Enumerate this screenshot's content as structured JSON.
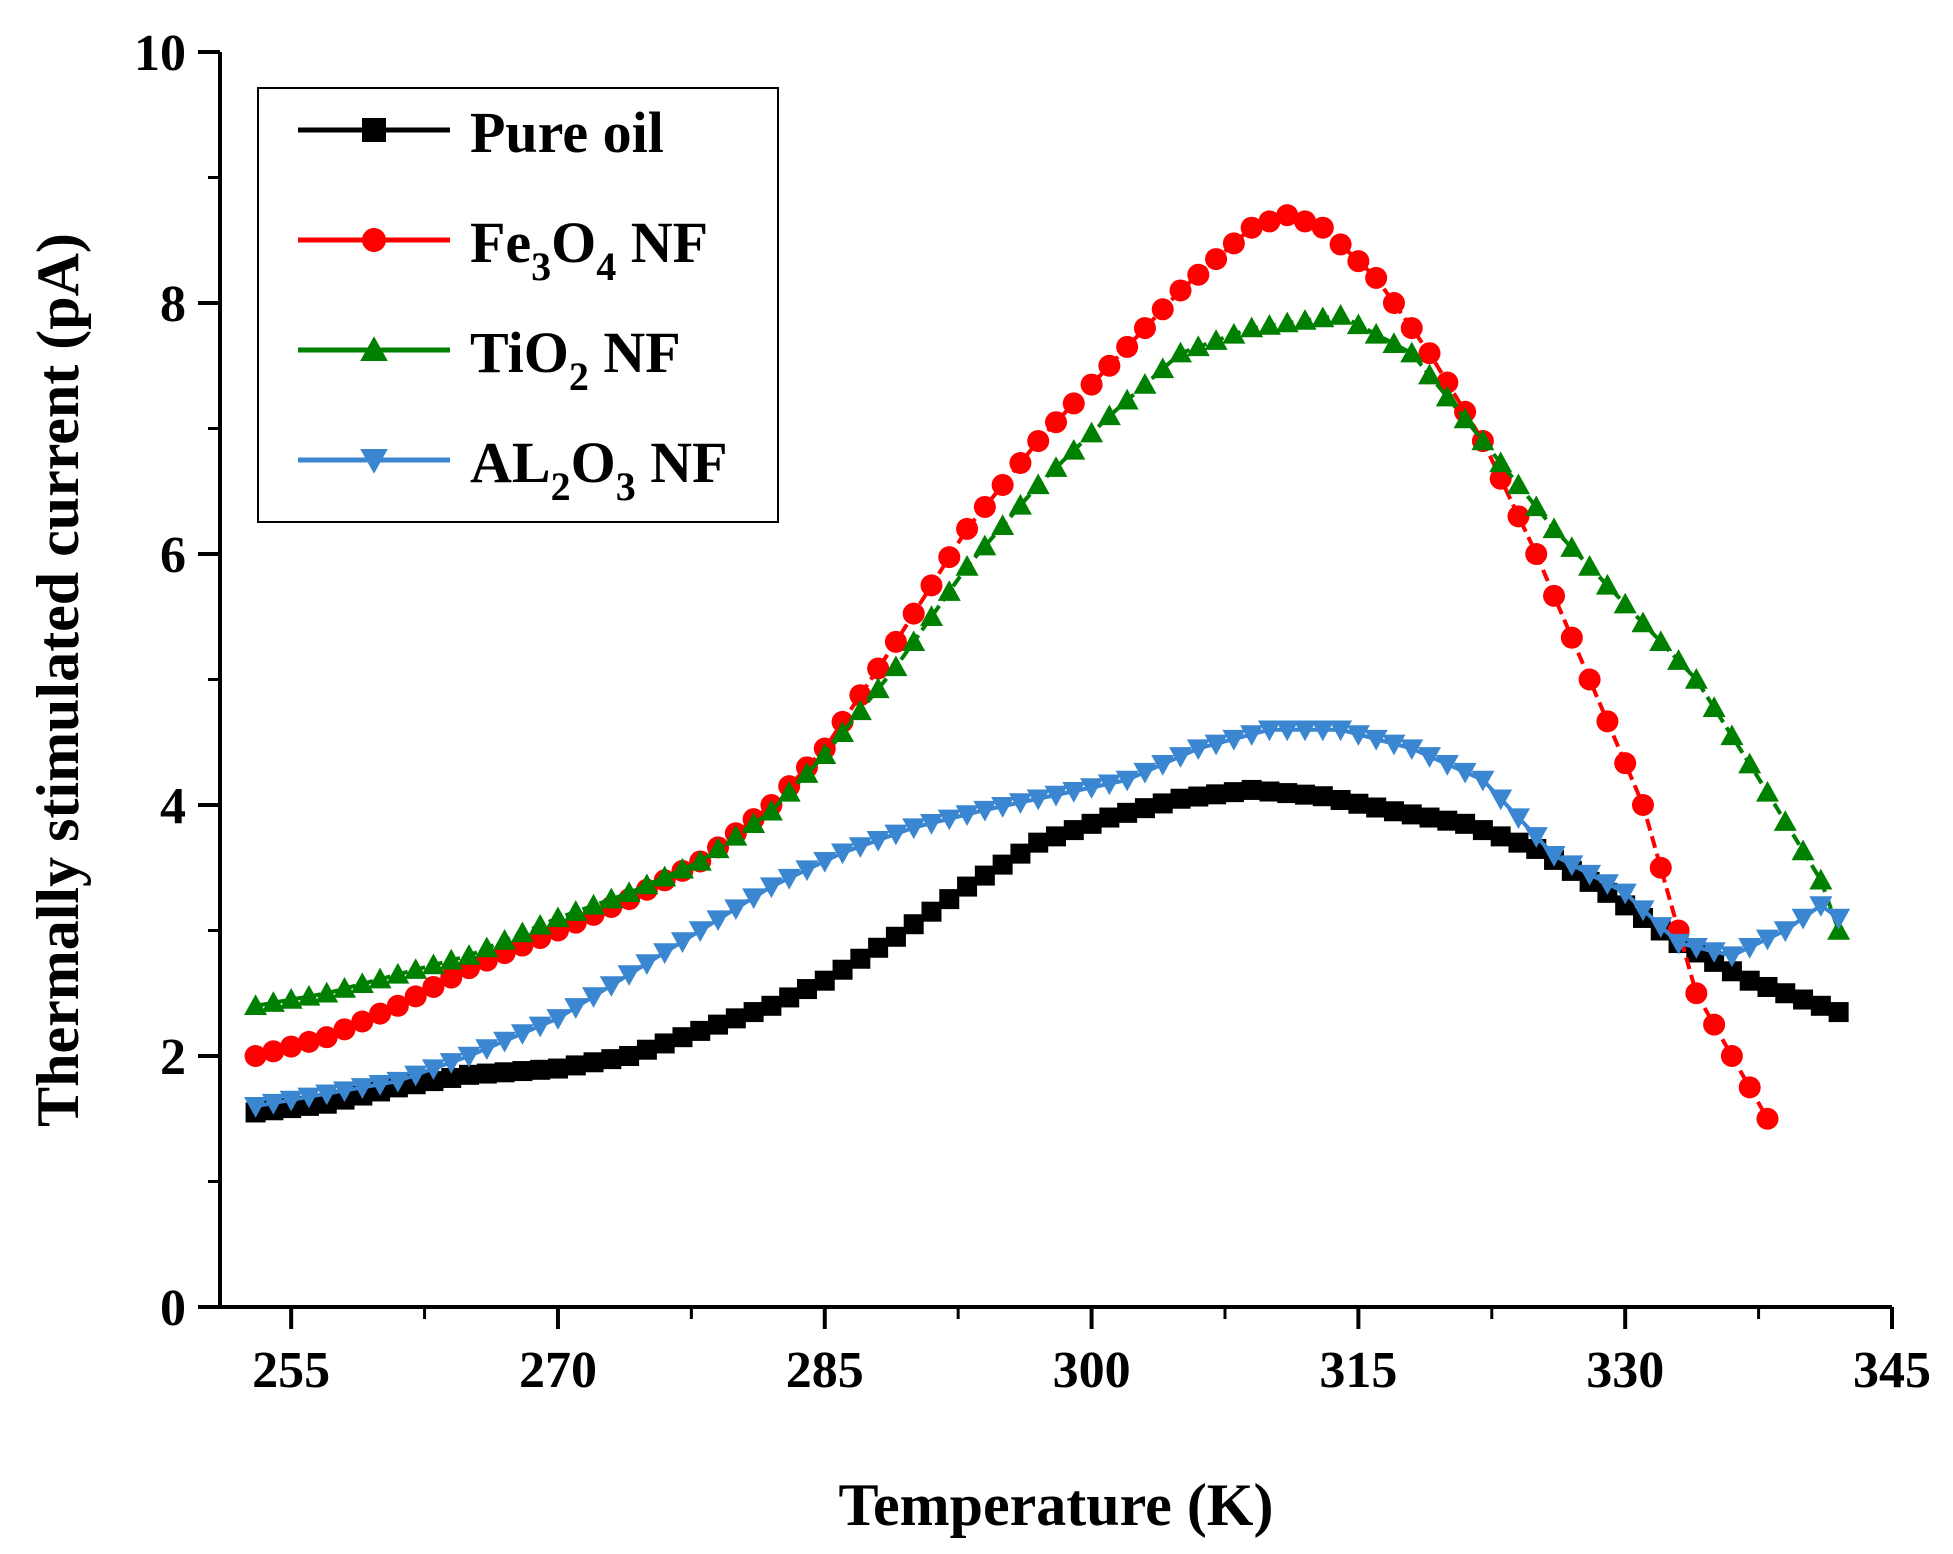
{
  "chart_data": {
    "type": "line",
    "xlabel": "Temperature (K)",
    "ylabel": "Thermally stimulated current (pA)",
    "xlim": [
      251,
      345
    ],
    "ylim": [
      0,
      10
    ],
    "x_ticks": [
      255,
      270,
      285,
      300,
      315,
      330,
      345
    ],
    "y_ticks": [
      0,
      2,
      4,
      6,
      8,
      10
    ],
    "legend": {
      "position": "top-left",
      "entries": [
        {
          "text": "Pure oil",
          "parts": [
            {
              "t": "Pure oil",
              "sub": false
            }
          ]
        },
        {
          "text": "Fe3O4 NF",
          "parts": [
            {
              "t": "Fe",
              "sub": false
            },
            {
              "t": "3",
              "sub": true
            },
            {
              "t": "O",
              "sub": false
            },
            {
              "t": "4",
              "sub": true
            },
            {
              "t": " NF",
              "sub": false
            }
          ]
        },
        {
          "text": "TiO2 NF",
          "parts": [
            {
              "t": "TiO",
              "sub": false
            },
            {
              "t": "2",
              "sub": true
            },
            {
              "t": " NF",
              "sub": false
            }
          ]
        },
        {
          "text": "AL2O3 NF",
          "parts": [
            {
              "t": "AL",
              "sub": false
            },
            {
              "t": "2",
              "sub": true
            },
            {
              "t": "O",
              "sub": false
            },
            {
              "t": "3",
              "sub": true
            },
            {
              "t": " NF",
              "sub": false
            }
          ]
        }
      ]
    },
    "series": [
      {
        "name": "Pure oil",
        "color": "#000000",
        "marker": "square",
        "dashed": false,
        "x": [
          253,
          257,
          261,
          265,
          270,
          274,
          278,
          282,
          285,
          289,
          293,
          297,
          301,
          305,
          309,
          313,
          317,
          321,
          325,
          329,
          333,
          337,
          341,
          342
        ],
        "y": [
          1.55,
          1.62,
          1.75,
          1.85,
          1.9,
          2.0,
          2.2,
          2.4,
          2.6,
          2.95,
          3.35,
          3.7,
          3.9,
          4.05,
          4.12,
          4.07,
          3.95,
          3.85,
          3.65,
          3.3,
          2.9,
          2.6,
          2.4,
          2.35
        ]
      },
      {
        "name": "Fe3O4 NF",
        "color": "#ff0000",
        "marker": "circle",
        "dashed": true,
        "x": [
          253,
          257,
          261,
          265,
          270,
          274,
          278,
          282,
          285,
          289,
          293,
          297,
          301,
          305,
          309,
          311,
          313,
          316,
          319,
          322,
          325,
          328,
          331,
          334,
          336,
          338
        ],
        "y": [
          2.0,
          2.15,
          2.4,
          2.7,
          3.0,
          3.25,
          3.55,
          4.0,
          4.45,
          5.3,
          6.2,
          6.9,
          7.5,
          8.1,
          8.6,
          8.7,
          8.6,
          8.2,
          7.6,
          6.9,
          6.0,
          5.0,
          4.0,
          2.5,
          2.0,
          1.5
        ]
      },
      {
        "name": "TiO2 NF",
        "color": "#008000",
        "marker": "triangle-up",
        "dashed": true,
        "x": [
          253,
          257,
          261,
          265,
          270,
          274,
          278,
          282,
          285,
          289,
          293,
          297,
          301,
          305,
          309,
          314,
          318,
          322,
          326,
          330,
          334,
          338,
          341,
          342
        ],
        "y": [
          2.4,
          2.5,
          2.65,
          2.8,
          3.1,
          3.3,
          3.55,
          3.95,
          4.4,
          5.1,
          5.9,
          6.55,
          7.1,
          7.6,
          7.8,
          7.9,
          7.6,
          6.9,
          6.2,
          5.6,
          5.0,
          4.1,
          3.4,
          3.0
        ]
      },
      {
        "name": "AL2O3 NF",
        "color": "#3a86d0",
        "marker": "triangle-down",
        "dashed": false,
        "x": [
          253,
          257,
          261,
          265,
          270,
          274,
          278,
          282,
          286,
          290,
          294,
          298,
          302,
          306,
          310,
          314,
          318,
          322,
          326,
          330,
          333,
          336,
          339,
          341,
          342
        ],
        "y": [
          1.6,
          1.7,
          1.8,
          2.0,
          2.3,
          2.65,
          3.0,
          3.35,
          3.62,
          3.82,
          3.96,
          4.08,
          4.2,
          4.45,
          4.6,
          4.6,
          4.45,
          4.2,
          3.6,
          3.3,
          2.9,
          2.8,
          3.0,
          3.2,
          3.1
        ]
      }
    ]
  }
}
